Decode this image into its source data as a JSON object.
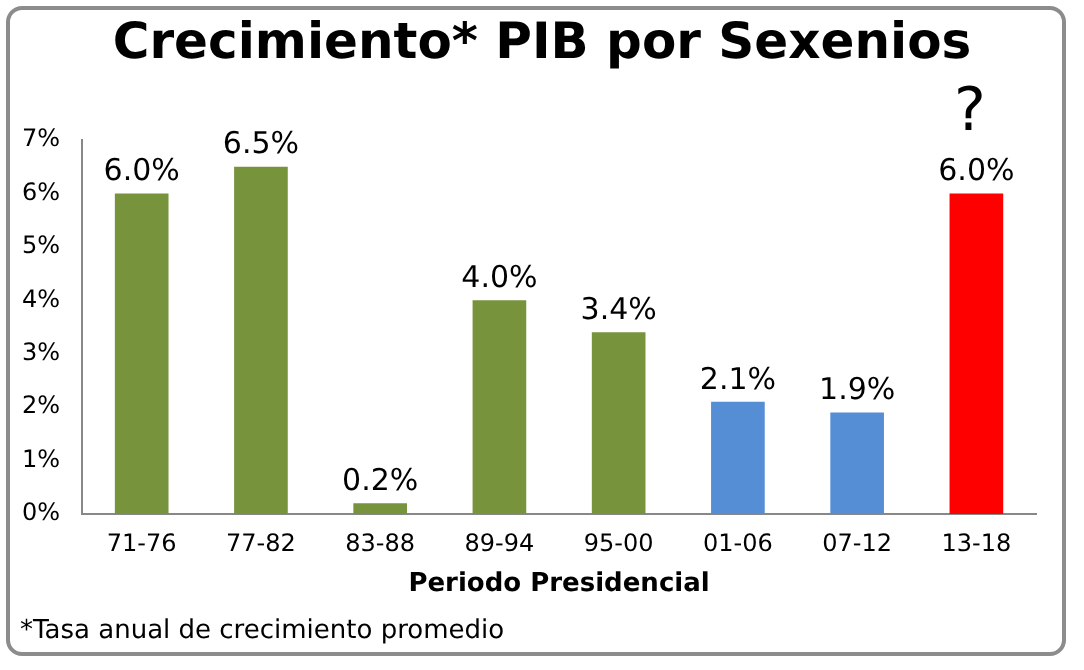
{
  "chart_data": {
    "type": "bar",
    "title": "Crecimiento* PIB por Sexenios",
    "xlabel": "Periodo Presidencial",
    "categories": [
      "71-76",
      "77-82",
      "83-88",
      "89-94",
      "95-00",
      "01-06",
      "07-12",
      "13-18"
    ],
    "values": [
      6.0,
      6.5,
      0.2,
      4.0,
      3.4,
      2.1,
      1.9,
      6.0
    ],
    "colors": [
      "#77933c",
      "#77933c",
      "#77933c",
      "#77933c",
      "#77933c",
      "#558ed5",
      "#558ed5",
      "#ff0000"
    ],
    "value_labels": [
      "6.0%",
      "6.5%",
      "0.2%",
      "4.0%",
      "3.4%",
      "2.1%",
      "1.9%",
      "6.0%"
    ],
    "ylim": [
      0,
      7
    ],
    "yticks": [
      {
        "value": 0,
        "label": "0%"
      },
      {
        "value": 1,
        "label": "1%"
      },
      {
        "value": 2,
        "label": "2%"
      },
      {
        "value": 3,
        "label": "3%"
      },
      {
        "value": 4,
        "label": "4%"
      },
      {
        "value": 5,
        "label": "5%"
      },
      {
        "value": 6,
        "label": "6%"
      },
      {
        "value": 7,
        "label": "7%"
      }
    ],
    "grid": false,
    "legend": false,
    "annotations": [
      "?",
      "*Tasa anual de crecimiento promedio"
    ]
  }
}
